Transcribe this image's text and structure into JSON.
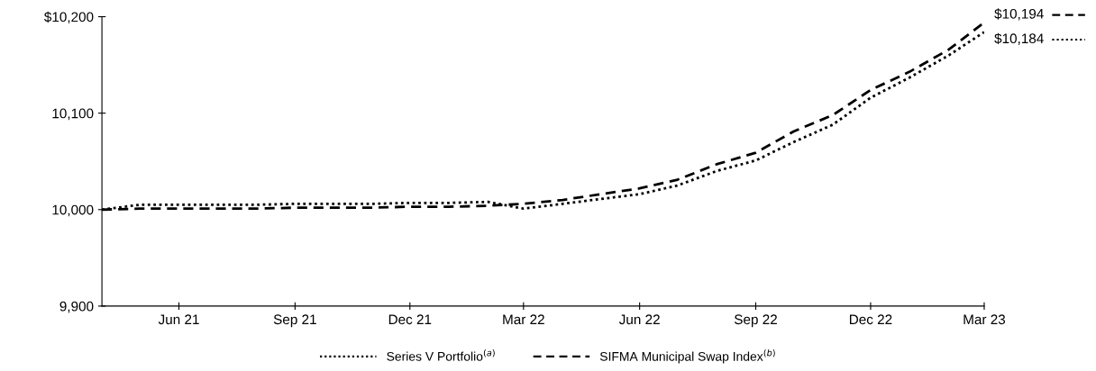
{
  "chart_data": {
    "type": "line",
    "x": [
      "2021-04",
      "2021-05",
      "2021-06",
      "2021-07",
      "2021-08",
      "2021-09",
      "2021-10",
      "2021-11",
      "2021-12",
      "2022-01",
      "2022-02",
      "2022-03",
      "2022-04",
      "2022-05",
      "2022-06",
      "2022-07",
      "2022-08",
      "2022-09",
      "2022-10",
      "2022-11",
      "2022-12",
      "2023-01",
      "2023-02",
      "2023-03"
    ],
    "series": [
      {
        "name": "Series V Portfolio$^{(a)}$",
        "color": "#000000",
        "line_style": "dotted",
        "values": [
          10000,
          10005,
          10005,
          10005,
          10005,
          10006,
          10006,
          10006,
          10007,
          10007,
          10008,
          10001,
          10006,
          10011,
          10016,
          10025,
          10040,
          10051,
          10070,
          10088,
          10116,
          10137,
          10160,
          10184
        ]
      },
      {
        "name": "SIFMA Municipal Swap Index$^{(b)}$",
        "color": "#000000",
        "line_style": "dashed",
        "values": [
          10000,
          10001,
          10001,
          10001,
          10001,
          10002,
          10002,
          10002,
          10003,
          10003,
          10004,
          10006,
          10010,
          10016,
          10022,
          10031,
          10047,
          10059,
          10081,
          10098,
          10124,
          10143,
          10166,
          10194
        ]
      }
    ],
    "xlim": [
      "2021-04",
      "2023-03"
    ],
    "xticks": [
      {
        "value": "2021-06",
        "label": "Jun 21"
      },
      {
        "value": "2021-09",
        "label": "Sep 21"
      },
      {
        "value": "2021-12",
        "label": "Dec 21"
      },
      {
        "value": "2022-03",
        "label": "Mar 22"
      },
      {
        "value": "2022-06",
        "label": "Jun 22"
      },
      {
        "value": "2022-09",
        "label": "Sep 22"
      },
      {
        "value": "2022-12",
        "label": "Dec 22"
      },
      {
        "value": "2023-03",
        "label": "Mar 23"
      }
    ],
    "ylim": [
      9900,
      10200
    ],
    "yticks": [
      {
        "value": 9900,
        "label": "9,900"
      },
      {
        "value": 10000,
        "label": "10,000"
      },
      {
        "value": 10100,
        "label": "10,100"
      },
      {
        "value": 10200,
        "label": "$10,200"
      }
    ],
    "annotations": [
      {
        "text": "$10,194",
        "x": "2023-03",
        "y": 10194
      },
      {
        "text": "$10,184",
        "x": "2023-03",
        "y": 10184
      }
    ],
    "legend": "bottom",
    "grid": false
  }
}
